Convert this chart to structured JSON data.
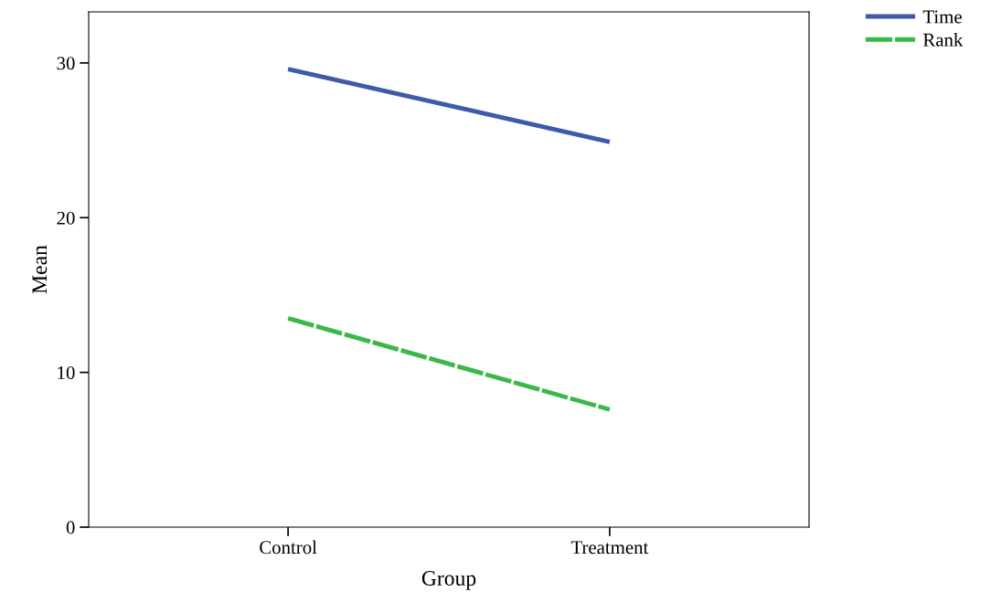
{
  "chart_data": {
    "type": "line",
    "xlabel": "Group",
    "ylabel": "Mean",
    "categories": [
      "Control",
      "Treatment"
    ],
    "series": [
      {
        "name": "Time",
        "color": "#3f5aa8",
        "values": [
          29.6,
          24.9
        ],
        "line_style": "solid"
      },
      {
        "name": "Rank",
        "color": "#3cb84a",
        "values": [
          13.5,
          7.6
        ],
        "line_style": "dashed"
      }
    ],
    "ylim": [
      0,
      33.3
    ],
    "yticks": [
      0,
      10,
      20,
      30
    ],
    "grid": false,
    "legend": "top right",
    "marker": "none"
  }
}
